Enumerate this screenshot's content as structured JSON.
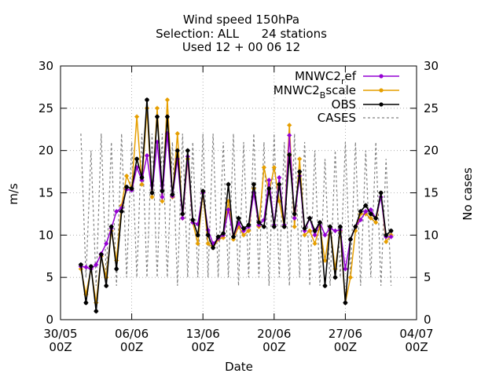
{
  "chart_data": {
    "type": "line",
    "title_lines": [
      "Wind speed 150hPa",
      "Selection: ALL      24 stations",
      "Used 12 + 00 06 12"
    ],
    "xlabel": "Date",
    "ylabel": "m/s",
    "y2label": "No cases",
    "ylim": [
      0,
      30
    ],
    "y2lim": [
      0,
      30
    ],
    "yticks": [
      0,
      5,
      10,
      15,
      20,
      25,
      30
    ],
    "xlim": [
      "2023-05-30 00",
      "2023-07-04 00"
    ],
    "xticks": [
      {
        "date": "2023-05-30 00",
        "line1": "30/05",
        "line2": "00Z"
      },
      {
        "date": "2023-06-06 00",
        "line1": "06/06",
        "line2": "00Z"
      },
      {
        "date": "2023-06-13 00",
        "line1": "13/06",
        "line2": "00Z"
      },
      {
        "date": "2023-06-20 00",
        "line1": "20/06",
        "line2": "00Z"
      },
      {
        "date": "2023-06-27 00",
        "line1": "27/06",
        "line2": "00Z"
      },
      {
        "date": "2023-07-04 00",
        "line1": "04/07",
        "line2": "00Z"
      }
    ],
    "grid": true,
    "legend_position": "top-right",
    "x": [
      "2023-06-01 00",
      "2023-06-01 12",
      "2023-06-02 00",
      "2023-06-02 12",
      "2023-06-03 00",
      "2023-06-03 12",
      "2023-06-04 00",
      "2023-06-04 12",
      "2023-06-05 00",
      "2023-06-05 12",
      "2023-06-06 00",
      "2023-06-06 12",
      "2023-06-07 00",
      "2023-06-07 12",
      "2023-06-08 00",
      "2023-06-08 12",
      "2023-06-09 00",
      "2023-06-09 12",
      "2023-06-10 00",
      "2023-06-10 12",
      "2023-06-11 00",
      "2023-06-11 12",
      "2023-06-12 00",
      "2023-06-12 12",
      "2023-06-13 00",
      "2023-06-13 12",
      "2023-06-14 00",
      "2023-06-14 12",
      "2023-06-15 00",
      "2023-06-15 12",
      "2023-06-16 00",
      "2023-06-16 12",
      "2023-06-17 00",
      "2023-06-17 12",
      "2023-06-18 00",
      "2023-06-18 12",
      "2023-06-19 00",
      "2023-06-19 12",
      "2023-06-20 00",
      "2023-06-20 12",
      "2023-06-21 00",
      "2023-06-21 12",
      "2023-06-22 00",
      "2023-06-22 12",
      "2023-06-23 00",
      "2023-06-23 12",
      "2023-06-24 00",
      "2023-06-24 12",
      "2023-06-25 00",
      "2023-06-25 12",
      "2023-06-26 00",
      "2023-06-26 12",
      "2023-06-27 00",
      "2023-06-27 12",
      "2023-06-28 00",
      "2023-06-28 12",
      "2023-06-29 00",
      "2023-06-29 12",
      "2023-06-30 00",
      "2023-06-30 12",
      "2023-07-01 00",
      "2023-07-01 12"
    ],
    "series": [
      {
        "name": "MNWC2_ref",
        "legend_main": "MNWC2",
        "legend_sub": "r",
        "legend_rest": "ef",
        "color": "#9400d3",
        "axis": "left",
        "values": [
          6.3,
          6.2,
          6.0,
          6.5,
          7.8,
          9.0,
          10.8,
          12.8,
          13.2,
          15.4,
          15.3,
          18.0,
          16.5,
          19.4,
          15.0,
          21.0,
          14.5,
          22.0,
          14.6,
          19.0,
          12.0,
          19.3,
          11.5,
          11.3,
          15.0,
          10.6,
          9.0,
          9.6,
          10.0,
          13.0,
          9.8,
          11.4,
          10.5,
          11.0,
          15.0,
          11.2,
          11.8,
          16.5,
          11.2,
          16.8,
          11.2,
          21.8,
          12.0,
          17.0,
          10.5,
          12.0,
          10.0,
          11.5,
          10.0,
          10.8,
          10.5,
          10.6,
          6.0,
          9.5,
          11.0,
          11.8,
          12.8,
          13.0,
          12.0,
          14.5,
          9.8,
          9.8
        ]
      },
      {
        "name": "MNWC2_Bscale",
        "legend_main": "MNWC2",
        "legend_sub": "B",
        "legend_rest": "scale",
        "color": "#e69f00",
        "axis": "left",
        "values": [
          6.0,
          3.0,
          6.0,
          2.0,
          7.5,
          5.0,
          10.5,
          7.0,
          13.5,
          17.0,
          15.5,
          24.0,
          16.0,
          25.0,
          14.5,
          25.0,
          14.0,
          26.0,
          14.5,
          22.0,
          12.0,
          19.0,
          11.5,
          9.0,
          15.0,
          9.0,
          8.5,
          9.5,
          9.7,
          14.0,
          9.5,
          11.0,
          10.0,
          10.5,
          15.5,
          11.0,
          18.0,
          15.0,
          18.0,
          14.0,
          11.0,
          23.0,
          11.0,
          19.0,
          10.0,
          10.5,
          9.0,
          11.0,
          7.0,
          11.0,
          6.0,
          10.5,
          2.0,
          5.0,
          10.5,
          12.5,
          12.5,
          12.0,
          11.5,
          15.0,
          9.2,
          10.0
        ]
      },
      {
        "name": "OBS",
        "legend_main": "OBS",
        "legend_sub": "",
        "legend_rest": "",
        "color": "#000000",
        "axis": "left",
        "values": [
          6.5,
          2.0,
          6.3,
          1.0,
          7.7,
          4.0,
          11.0,
          6.0,
          12.8,
          15.7,
          15.5,
          19.0,
          16.8,
          26.0,
          15.0,
          24.0,
          15.2,
          24.0,
          14.8,
          20.0,
          12.5,
          20.0,
          11.8,
          10.0,
          15.2,
          10.0,
          8.5,
          9.8,
          10.2,
          16.0,
          9.8,
          12.0,
          10.8,
          11.2,
          16.0,
          11.5,
          11.0,
          15.5,
          11.0,
          16.0,
          11.0,
          19.5,
          12.5,
          17.5,
          10.8,
          12.0,
          10.5,
          11.5,
          4.0,
          11.0,
          5.0,
          11.0,
          2.0,
          9.5,
          11.0,
          12.8,
          13.5,
          12.5,
          12.0,
          15.0,
          10.0,
          10.5
        ]
      },
      {
        "name": "CASES",
        "legend_main": "CASES",
        "legend_sub": "",
        "legend_rest": "",
        "color": "#808080",
        "axis": "right",
        "values": [
          22,
          5,
          20,
          4,
          22,
          5,
          21,
          4,
          22,
          5,
          21,
          5,
          22,
          5,
          22,
          5,
          22,
          5,
          21,
          4,
          22,
          5,
          21,
          5,
          22,
          5,
          22,
          5,
          21,
          5,
          22,
          4,
          21,
          5,
          22,
          5,
          21,
          4,
          22,
          5,
          21,
          4,
          22,
          5,
          21,
          4,
          20,
          4,
          19,
          4,
          20,
          5,
          21,
          5,
          21,
          4,
          20,
          5,
          21,
          4,
          19,
          4
        ]
      }
    ]
  }
}
